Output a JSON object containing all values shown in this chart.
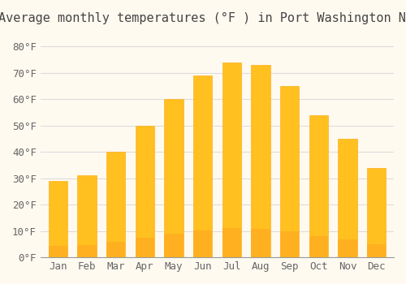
{
  "months": [
    "Jan",
    "Feb",
    "Mar",
    "Apr",
    "May",
    "Jun",
    "Jul",
    "Aug",
    "Sep",
    "Oct",
    "Nov",
    "Dec"
  ],
  "values": [
    29,
    31,
    40,
    50,
    60,
    69,
    74,
    73,
    65,
    54,
    45,
    34
  ],
  "bar_color_top": "#FFC020",
  "bar_color_bottom": "#FFB020",
  "title": "Average monthly temperatures (°F ) in Port Washington North",
  "ylabel": "",
  "ylim": [
    0,
    85
  ],
  "yticks": [
    0,
    10,
    20,
    30,
    40,
    50,
    60,
    70,
    80
  ],
  "ytick_labels": [
    "0°F",
    "10°F",
    "20°F",
    "30°F",
    "40°F",
    "50°F",
    "60°F",
    "70°F",
    "80°F"
  ],
  "background_color": "#FFFAF0",
  "grid_color": "#DDDDDD",
  "title_fontsize": 11,
  "tick_fontsize": 9,
  "bar_edge_color": "#E8960A"
}
